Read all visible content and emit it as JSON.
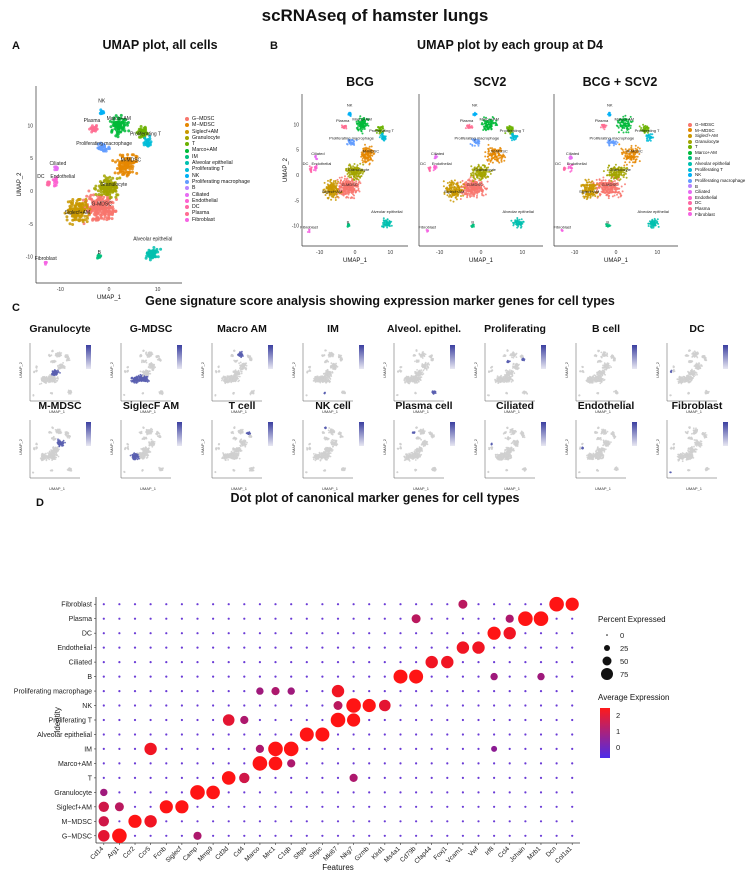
{
  "title": "scRNAseq of hamster lungs",
  "panels": {
    "a": {
      "letter": "A",
      "title": "UMAP plot, all cells"
    },
    "b": {
      "letter": "B",
      "title": "UMAP plot by each group at D4",
      "groups": [
        "BCG",
        "SCV2",
        "BCG + SCV2"
      ]
    },
    "c": {
      "letter": "C",
      "title": "Gene signature score analysis showing expression marker genes for cell types",
      "row1": [
        "Granulocyte",
        "G-MDSC",
        "Macro AM",
        "IM",
        "Alveol. epithel.",
        "Proliferating",
        "B cell",
        "DC"
      ],
      "row2": [
        "M-MDSC",
        "SiglecF AM",
        "T cell",
        "NK cell",
        "Plasma cell",
        "Ciliated",
        "Endothelial",
        "Fibroblast"
      ]
    },
    "d": {
      "letter": "D",
      "title": "Dot plot of canonical marker genes for cell types"
    }
  },
  "umap": {
    "xlabel": "UMAP_1",
    "ylabel": "UMAP_2",
    "xticks": [
      "-10",
      "0",
      "10"
    ],
    "yticks": [
      "10",
      "5",
      "0",
      "-5",
      "-10"
    ],
    "cluster_labels": [
      "NK",
      "Plasma",
      "Marco+AM",
      "Proliferating T",
      "Proliferating macrophage",
      "M-MDSC",
      "Ciliated",
      "DC",
      "Endothelial",
      "Granulocyte",
      "G-MDSC",
      "Siglecf+AM",
      "Alveolar epithelial",
      "Fibroblast",
      "B"
    ]
  },
  "legend_items": [
    {
      "label": "G−MDSC",
      "color": "#f8766d"
    },
    {
      "label": "M−MDSC",
      "color": "#e58700"
    },
    {
      "label": "Siglecf+AM",
      "color": "#c99800"
    },
    {
      "label": "Granulocyte",
      "color": "#a3a500"
    },
    {
      "label": "T",
      "color": "#6bb100"
    },
    {
      "label": "Marco+AM",
      "color": "#00ba38"
    },
    {
      "label": "IM",
      "color": "#00bf7d"
    },
    {
      "label": "Alveolar epithelial",
      "color": "#00c0af"
    },
    {
      "label": "Proliferating T",
      "color": "#00bcd8"
    },
    {
      "label": "NK",
      "color": "#00b0f6"
    },
    {
      "label": "Proliferating macrophage",
      "color": "#619cff"
    },
    {
      "label": "B",
      "color": "#b983ff"
    },
    {
      "label": "Ciliated",
      "color": "#e76bf3"
    },
    {
      "label": "Endothelial",
      "color": "#fd61d1"
    },
    {
      "label": "DC",
      "color": "#ff67a4"
    },
    {
      "label": "Plasma",
      "color": "#ff6c91"
    },
    {
      "label": "Fibroblast",
      "color": "#f564e3"
    }
  ],
  "chart_data": {
    "type": "scatter",
    "title": "Dot plot of canonical marker genes for cell types",
    "xlabel": "Features",
    "ylabel": "Identity",
    "features": [
      "Cd14",
      "Arg1",
      "Ccr2",
      "Ccr5",
      "Fcnb",
      "Siglecf",
      "Camp",
      "Mmp9",
      "Cd3d",
      "Cd4",
      "Marco",
      "Mrc1",
      "C1qb",
      "Sftpb",
      "Sftpc",
      "Mki67",
      "Nkg7",
      "Gzmb",
      "Klrd1",
      "Ms4a1",
      "Cd79b",
      "Cfap44",
      "Foxj1",
      "Vcam1",
      "Vwf",
      "Irf8",
      "Ccl4",
      "Jchain",
      "Mzb1",
      "Dcn",
      "Col1a1"
    ],
    "identities": [
      "Fibroblast",
      "Plasma",
      "DC",
      "Endothelial",
      "Ciliated",
      "B",
      "Proliferating macrophage",
      "NK",
      "Proliferating T",
      "Alveolar epithelial",
      "IM",
      "Marco+AM",
      "T",
      "Granulocyte",
      "Siglecf+AM",
      "M−MDSC",
      "G−MDSC"
    ],
    "highlights": [
      {
        "identity": "Fibroblast",
        "features": {
          "Dcn": 2.5,
          "Col1a1": 2.2,
          "Vcam1": 1.2
        }
      },
      {
        "identity": "Plasma",
        "features": {
          "Jchain": 2.5,
          "Mzb1": 2.5,
          "Cd79b": 1.2,
          "Ccl4": 1.0
        }
      },
      {
        "identity": "DC",
        "features": {
          "Irf8": 2.2,
          "Ccl4": 2.0
        }
      },
      {
        "identity": "Endothelial",
        "features": {
          "Vcam1": 2.0,
          "Vwf": 2.0
        }
      },
      {
        "identity": "Ciliated",
        "features": {
          "Cfap44": 2.0,
          "Foxj1": 2.0
        }
      },
      {
        "identity": "B",
        "features": {
          "Ms4a1": 2.4,
          "Cd79b": 2.4,
          "Irf8": 0.8,
          "Mzb1": 0.8
        }
      },
      {
        "identity": "Proliferating macrophage",
        "features": {
          "Mki67": 2.0,
          "Mrc1": 1.0,
          "Marco": 0.8,
          "C1qb": 0.8
        }
      },
      {
        "identity": "NK",
        "features": {
          "Nkg7": 2.5,
          "Gzmb": 2.2,
          "Klrd1": 1.8,
          "Mki67": 1.2
        }
      },
      {
        "identity": "Proliferating T",
        "features": {
          "Mki67": 2.5,
          "Nkg7": 2.2,
          "Cd3d": 1.8,
          "Cd4": 1.0
        }
      },
      {
        "identity": "Alveolar epithelial",
        "features": {
          "Sftpb": 2.4,
          "Sftpc": 2.4
        }
      },
      {
        "identity": "IM",
        "features": {
          "Mrc1": 2.5,
          "C1qb": 2.5,
          "Ccr5": 2.0,
          "Marco": 1.0,
          "Irf8": 0.5
        }
      },
      {
        "identity": "Marco+AM",
        "features": {
          "Marco": 2.5,
          "Mrc1": 2.3,
          "C1qb": 1.0
        }
      },
      {
        "identity": "T",
        "features": {
          "Cd3d": 2.3,
          "Cd4": 1.5,
          "Nkg7": 1.0
        }
      },
      {
        "identity": "Granulocyte",
        "features": {
          "Camp": 2.5,
          "Mmp9": 2.3,
          "Cd14": 0.8
        }
      },
      {
        "identity": "Siglecf+AM",
        "features": {
          "Fcnb": 2.2,
          "Siglecf": 2.2,
          "Cd14": 1.5,
          "Arg1": 1.2
        }
      },
      {
        "identity": "M−MDSC",
        "features": {
          "Ccr2": 2.2,
          "Ccr5": 2.0,
          "Cd14": 1.5
        }
      },
      {
        "identity": "G−MDSC",
        "features": {
          "Arg1": 2.5,
          "Cd14": 1.8,
          "Camp": 1.0
        }
      }
    ],
    "size_legend": {
      "title": "Percent Expressed",
      "values": [
        0,
        25,
        50,
        75
      ]
    },
    "color_legend": {
      "title": "Average Expression",
      "ticks": [
        2,
        1,
        0
      ]
    }
  }
}
